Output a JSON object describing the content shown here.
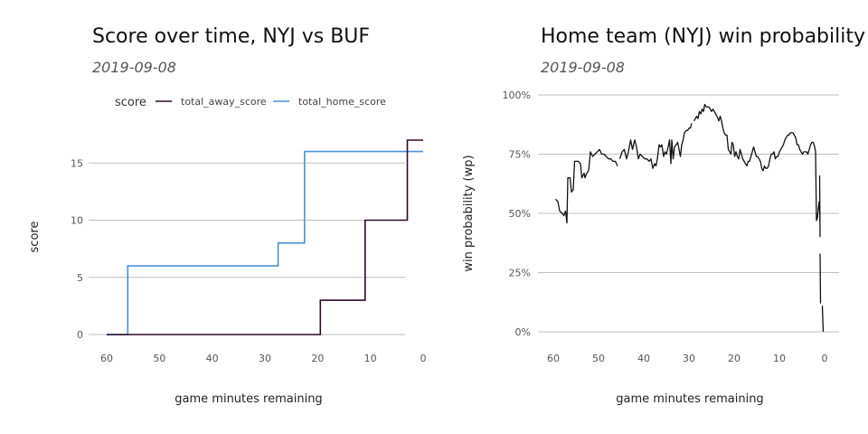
{
  "chart_data": [
    {
      "type": "line",
      "title": "Score over time, NYJ vs BUF",
      "subtitle": "2019-09-08",
      "xlabel": "game minutes remaining",
      "ylabel": "score",
      "xlim": [
        60,
        0
      ],
      "ylim": [
        0,
        17
      ],
      "x_ticks": [
        60,
        50,
        40,
        30,
        20,
        10,
        0
      ],
      "y_ticks": [
        0,
        5,
        10,
        15
      ],
      "grid": true,
      "legend": {
        "title": "score",
        "placement": "top"
      },
      "series": [
        {
          "name": "total_away_score",
          "color": "#2d0a2a",
          "step": true,
          "points": [
            [
              60,
              0
            ],
            [
              19.5,
              0
            ],
            [
              19.5,
              3
            ],
            [
              11,
              3
            ],
            [
              11,
              10
            ],
            [
              3,
              10
            ],
            [
              3,
              17
            ],
            [
              0,
              17
            ]
          ]
        },
        {
          "name": "total_home_score",
          "color": "#4a90d9",
          "step": true,
          "points": [
            [
              60,
              0
            ],
            [
              56,
              0
            ],
            [
              56,
              6
            ],
            [
              27.5,
              6
            ],
            [
              27.5,
              8
            ],
            [
              22.5,
              8
            ],
            [
              22.5,
              16
            ],
            [
              0,
              16
            ]
          ]
        }
      ]
    },
    {
      "type": "line",
      "title": "Home team (NYJ) win probability",
      "subtitle": "2019-09-08",
      "xlabel": "game minutes remaining",
      "ylabel": "win probability (wp)",
      "xlim": [
        60,
        0
      ],
      "ylim": [
        0,
        1
      ],
      "x_ticks": [
        60,
        50,
        40,
        30,
        20,
        10,
        0
      ],
      "y_ticks": [
        0,
        0.25,
        0.5,
        0.75,
        1
      ],
      "y_tick_labels": [
        "0%",
        "25%",
        "50%",
        "75%",
        "100%"
      ],
      "grid": true,
      "series": [
        {
          "color": "#111111",
          "segments": [
            [
              [
                59.5,
                0.56
              ],
              [
                59,
                0.55
              ],
              [
                58.6,
                0.51
              ],
              [
                58,
                0.5
              ],
              [
                57.7,
                0.49
              ],
              [
                57.3,
                0.51
              ],
              [
                57,
                0.46
              ],
              [
                56.8,
                0.65
              ],
              [
                56.3,
                0.65
              ],
              [
                56,
                0.59
              ],
              [
                55.6,
                0.6
              ],
              [
                55.3,
                0.72
              ],
              [
                54.5,
                0.72
              ],
              [
                54,
                0.71
              ],
              [
                53.7,
                0.65
              ],
              [
                53.2,
                0.67
              ],
              [
                53,
                0.65
              ],
              [
                52.6,
                0.67
              ],
              [
                52.2,
                0.68
              ],
              [
                51.8,
                0.76
              ],
              [
                51.3,
                0.74
              ],
              [
                50.8,
                0.75
              ],
              [
                50.3,
                0.76
              ],
              [
                49.8,
                0.77
              ],
              [
                49.3,
                0.75
              ],
              [
                48.8,
                0.75
              ],
              [
                48.3,
                0.74
              ],
              [
                47.8,
                0.73
              ],
              [
                47.3,
                0.73
              ],
              [
                46.8,
                0.72
              ],
              [
                46.3,
                0.72
              ],
              [
                45.8,
                0.7
              ]
            ],
            [
              [
                45.3,
                0.73
              ],
              [
                44.8,
                0.76
              ],
              [
                44.3,
                0.77
              ],
              [
                43.8,
                0.73
              ],
              [
                43.4,
                0.76
              ],
              [
                42.9,
                0.81
              ],
              [
                42.5,
                0.77
              ],
              [
                42,
                0.81
              ],
              [
                41.6,
                0.78
              ],
              [
                41.2,
                0.73
              ],
              [
                40.8,
                0.75
              ],
              [
                40.3,
                0.74
              ],
              [
                39.8,
                0.73
              ],
              [
                39.3,
                0.73
              ],
              [
                38.8,
                0.72
              ],
              [
                38.4,
                0.73
              ],
              [
                38,
                0.69
              ],
              [
                37.6,
                0.71
              ],
              [
                37.3,
                0.7
              ],
              [
                37,
                0.73
              ],
              [
                36.6,
                0.79
              ],
              [
                36.3,
                0.78
              ],
              [
                36,
                0.79
              ],
              [
                35.6,
                0.74
              ],
              [
                35.3,
                0.76
              ],
              [
                35,
                0.75
              ],
              [
                34.6,
                0.78
              ],
              [
                34.3,
                0.81
              ],
              [
                34,
                0.71
              ],
              [
                33.8,
                0.81
              ],
              [
                33.5,
                0.73
              ],
              [
                33.2,
                0.78
              ],
              [
                32.8,
                0.79
              ],
              [
                32.5,
                0.8
              ],
              [
                32.2,
                0.77
              ],
              [
                31.9,
                0.74
              ],
              [
                31.6,
                0.79
              ],
              [
                31.3,
                0.81
              ],
              [
                31,
                0.84
              ],
              [
                30.6,
                0.85
              ],
              [
                30.3,
                0.85
              ],
              [
                30,
                0.86
              ],
              [
                29.7,
                0.86
              ],
              [
                29.4,
                0.88
              ]
            ],
            [
              [
                28.9,
                0.89
              ],
              [
                28.6,
                0.9
              ],
              [
                28.3,
                0.91
              ],
              [
                28,
                0.9
              ],
              [
                27.7,
                0.93
              ],
              [
                27.4,
                0.92
              ],
              [
                27.1,
                0.94
              ],
              [
                26.8,
                0.93
              ],
              [
                26.5,
                0.96
              ],
              [
                26.2,
                0.95
              ],
              [
                25.9,
                0.95
              ],
              [
                25.6,
                0.95
              ],
              [
                25.3,
                0.94
              ],
              [
                25,
                0.93
              ],
              [
                24.7,
                0.94
              ],
              [
                24.4,
                0.93
              ],
              [
                24.1,
                0.92
              ],
              [
                23.8,
                0.91
              ],
              [
                23.4,
                0.89
              ],
              [
                23.1,
                0.91
              ],
              [
                22.8,
                0.89
              ],
              [
                22.5,
                0.86
              ],
              [
                22.2,
                0.84
              ],
              [
                21.9,
                0.83
              ],
              [
                21.6,
                0.83
              ],
              [
                21.3,
                0.77
              ],
              [
                21,
                0.76
              ],
              [
                20.7,
                0.75
              ],
              [
                20.5,
                0.8
              ],
              [
                20.2,
                0.79
              ],
              [
                19.9,
                0.74
              ],
              [
                19.6,
                0.76
              ],
              [
                19.3,
                0.74
              ],
              [
                19,
                0.73
              ],
              [
                18.7,
                0.77
              ],
              [
                18.4,
                0.75
              ],
              [
                18.1,
                0.73
              ],
              [
                17.8,
                0.72
              ],
              [
                17.5,
                0.71
              ],
              [
                17.2,
                0.7
              ],
              [
                16.9,
                0.72
              ],
              [
                16.6,
                0.72
              ],
              [
                16.3,
                0.74
              ],
              [
                16,
                0.76
              ],
              [
                15.7,
                0.78
              ],
              [
                15.4,
                0.76
              ],
              [
                15.1,
                0.74
              ],
              [
                14.8,
                0.74
              ],
              [
                14.5,
                0.73
              ],
              [
                14.2,
                0.72
              ],
              [
                13.9,
                0.69
              ],
              [
                13.6,
                0.68
              ],
              [
                13.3,
                0.7
              ],
              [
                13,
                0.69
              ],
              [
                12.7,
                0.69
              ],
              [
                12.4,
                0.7
              ],
              [
                12.1,
                0.73
              ],
              [
                11.8,
                0.75
              ],
              [
                11.5,
                0.75
              ],
              [
                11.2,
                0.76
              ],
              [
                10.9,
                0.73
              ],
              [
                10.6,
                0.74
              ],
              [
                10.3,
                0.74
              ],
              [
                10,
                0.76
              ],
              [
                9.7,
                0.77
              ],
              [
                9.4,
                0.78
              ],
              [
                9.1,
                0.79
              ],
              [
                8.8,
                0.81
              ],
              [
                8.5,
                0.82
              ],
              [
                8.2,
                0.83
              ],
              [
                7.9,
                0.83
              ],
              [
                7.6,
                0.84
              ],
              [
                7.3,
                0.84
              ],
              [
                7,
                0.84
              ],
              [
                6.7,
                0.83
              ],
              [
                6.4,
                0.82
              ],
              [
                6.1,
                0.79
              ],
              [
                5.8,
                0.79
              ],
              [
                5.5,
                0.77
              ],
              [
                5.2,
                0.76
              ],
              [
                4.9,
                0.75
              ],
              [
                4.6,
                0.76
              ],
              [
                4.3,
                0.76
              ],
              [
                4,
                0.76
              ],
              [
                3.7,
                0.75
              ],
              [
                3.4,
                0.77
              ],
              [
                3.1,
                0.79
              ],
              [
                2.8,
                0.8
              ],
              [
                2.5,
                0.8
              ],
              [
                2.2,
                0.78
              ],
              [
                2,
                0.76
              ],
              [
                1.8,
                0.47
              ],
              [
                1.6,
                0.48
              ],
              [
                1.4,
                0.52
              ],
              [
                1.2,
                0.55
              ],
              [
                1,
                0.47
              ]
            ],
            [
              [
                1.1,
                0.66
              ],
              [
                1,
                0.4
              ]
            ],
            [
              [
                1,
                0.33
              ],
              [
                0.9,
                0.12
              ]
            ],
            [
              [
                0.5,
                0.11
              ],
              [
                0.3,
                0.0
              ]
            ]
          ]
        }
      ]
    }
  ]
}
